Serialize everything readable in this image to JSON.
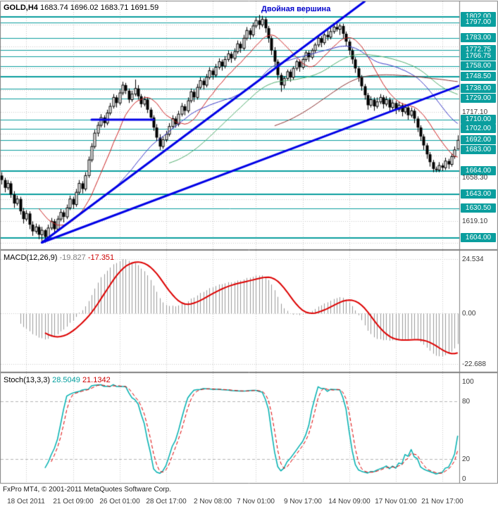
{
  "window": {
    "symbol": "GOLD,H4",
    "ohlc_text": "1683.74 1696.02 1683.71 1691.59"
  },
  "annotation": {
    "text": "Двойная вершина",
    "color": "#0000cc"
  },
  "indicators": {
    "macd": {
      "label": "MACD(12,26,9)",
      "value_main": "-19.827",
      "value_signal": "-17.351",
      "axis": [
        "24.534",
        "0.00",
        "-22.688"
      ]
    },
    "stoch": {
      "label": "Stoch(13,3,3)",
      "value_main": "28.5049",
      "value_signal": "21.1342",
      "axis": [
        "100",
        "80",
        "20",
        "0"
      ]
    }
  },
  "footer": {
    "copyright": "FxPro MT4, © 2001-2011 MetaQuotes Software Corp."
  },
  "time_axis": {
    "labels": [
      "18 Oct 2011",
      "21 Oct 09:00",
      "26 Oct 01:00",
      "28 Oct 17:00",
      "2 Nov 08:00",
      "7 Nov 01:00",
      "9 Nov 17:00",
      "14 Nov 09:00",
      "17 Nov 01:00",
      "21 Nov 17:00"
    ],
    "tick_indices": [
      8,
      23,
      38,
      53,
      68,
      82,
      97,
      112,
      127,
      142
    ]
  },
  "price_axis": {
    "grid_start": 1599.5,
    "grid_step": 19.6
  },
  "colors": {
    "teal": "#0a9e9e",
    "grid": "#c9c9c9",
    "border": "#808080",
    "candle_up": "#ffffff",
    "candle_down": "#000000",
    "wick": "#000000",
    "trendline": "#0000e6",
    "macd_hist": "#999999",
    "macd_signal": "#dd0000",
    "stoch_main": "#00b0b0",
    "stoch_signal": "#dd0000",
    "axis_text": "#3a3a3a"
  },
  "chart_data": {
    "type": "candlestick",
    "symbol": "GOLD",
    "timeframe": "H4",
    "title": "GOLD,H4 1683.74 1696.02 1683.71 1691.59",
    "annotation": "Двойная вершина",
    "current_ohlc": [
      1683.74,
      1696.02,
      1683.71,
      1691.59
    ],
    "price_range": [
      1594,
      1816
    ],
    "x_labels": [
      "18 Oct 2011",
      "21 Oct 09:00",
      "26 Oct 01:00",
      "28 Oct 17:00",
      "2 Nov 08:00",
      "7 Nov 01:00",
      "9 Nov 17:00",
      "14 Nov 09:00",
      "17 Nov 01:00",
      "21 Nov 17:00"
    ],
    "candles": [
      [
        1660,
        1663,
        1652,
        1656
      ],
      [
        1656,
        1658,
        1645,
        1649
      ],
      [
        1649,
        1656,
        1647,
        1653
      ],
      [
        1653,
        1655,
        1640,
        1643
      ],
      [
        1643,
        1646,
        1631,
        1635
      ],
      [
        1635,
        1642,
        1633,
        1639
      ],
      [
        1639,
        1641,
        1625,
        1628
      ],
      [
        1628,
        1631,
        1617,
        1621
      ],
      [
        1621,
        1629,
        1619,
        1626
      ],
      [
        1626,
        1628,
        1612,
        1616
      ],
      [
        1616,
        1619,
        1606,
        1610
      ],
      [
        1610,
        1617,
        1608,
        1614
      ],
      [
        1614,
        1616,
        1603,
        1607
      ],
      [
        1607,
        1614,
        1601,
        1611
      ],
      [
        1611,
        1612,
        1600,
        1605
      ],
      [
        1605,
        1616,
        1603,
        1613
      ],
      [
        1613,
        1622,
        1611,
        1619
      ],
      [
        1619,
        1621,
        1608,
        1612
      ],
      [
        1612,
        1624,
        1610,
        1621
      ],
      [
        1621,
        1630,
        1619,
        1627
      ],
      [
        1627,
        1629,
        1618,
        1623
      ],
      [
        1623,
        1634,
        1621,
        1631
      ],
      [
        1631,
        1642,
        1629,
        1639
      ],
      [
        1639,
        1641,
        1630,
        1634
      ],
      [
        1634,
        1648,
        1632,
        1645
      ],
      [
        1645,
        1656,
        1643,
        1653
      ],
      [
        1653,
        1655,
        1644,
        1648
      ],
      [
        1648,
        1663,
        1646,
        1660
      ],
      [
        1660,
        1677,
        1658,
        1674
      ],
      [
        1674,
        1689,
        1672,
        1686
      ],
      [
        1686,
        1701,
        1684,
        1698
      ],
      [
        1698,
        1708,
        1695,
        1705
      ],
      [
        1705,
        1715,
        1703,
        1712
      ],
      [
        1712,
        1714,
        1703,
        1707
      ],
      [
        1707,
        1719,
        1705,
        1716
      ],
      [
        1716,
        1725,
        1714,
        1722
      ],
      [
        1722,
        1733,
        1720,
        1730
      ],
      [
        1730,
        1732,
        1721,
        1725
      ],
      [
        1725,
        1737,
        1723,
        1734
      ],
      [
        1734,
        1744,
        1732,
        1741
      ],
      [
        1741,
        1743,
        1733,
        1736
      ],
      [
        1736,
        1738,
        1725,
        1728
      ],
      [
        1728,
        1736,
        1726,
        1733
      ],
      [
        1733,
        1746,
        1731,
        1738
      ],
      [
        1738,
        1741,
        1728,
        1731
      ],
      [
        1731,
        1733,
        1721,
        1724
      ],
      [
        1724,
        1731,
        1722,
        1728
      ],
      [
        1728,
        1730,
        1716,
        1719
      ],
      [
        1719,
        1721,
        1709,
        1712
      ],
      [
        1712,
        1714,
        1700,
        1703
      ],
      [
        1703,
        1706,
        1691,
        1694
      ],
      [
        1694,
        1697,
        1683,
        1686
      ],
      [
        1686,
        1695,
        1684,
        1692
      ],
      [
        1692,
        1700,
        1690,
        1697
      ],
      [
        1697,
        1707,
        1695,
        1704
      ],
      [
        1704,
        1714,
        1702,
        1711
      ],
      [
        1711,
        1713,
        1703,
        1706
      ],
      [
        1706,
        1718,
        1704,
        1715
      ],
      [
        1715,
        1725,
        1713,
        1722
      ],
      [
        1722,
        1724,
        1714,
        1718
      ],
      [
        1718,
        1730,
        1716,
        1727
      ],
      [
        1727,
        1738,
        1725,
        1735
      ],
      [
        1735,
        1737,
        1726,
        1730
      ],
      [
        1730,
        1742,
        1728,
        1739
      ],
      [
        1739,
        1748,
        1737,
        1745
      ],
      [
        1745,
        1747,
        1737,
        1741
      ],
      [
        1741,
        1751,
        1739,
        1748
      ],
      [
        1748,
        1757,
        1746,
        1754
      ],
      [
        1754,
        1756,
        1746,
        1750
      ],
      [
        1750,
        1760,
        1748,
        1757
      ],
      [
        1757,
        1765,
        1755,
        1762
      ],
      [
        1762,
        1764,
        1754,
        1758
      ],
      [
        1758,
        1767,
        1756,
        1764
      ],
      [
        1764,
        1772,
        1762,
        1769
      ],
      [
        1769,
        1771,
        1761,
        1765
      ],
      [
        1765,
        1774,
        1763,
        1771
      ],
      [
        1771,
        1781,
        1769,
        1778
      ],
      [
        1778,
        1780,
        1770,
        1774
      ],
      [
        1774,
        1786,
        1772,
        1783
      ],
      [
        1783,
        1793,
        1781,
        1790
      ],
      [
        1790,
        1792,
        1782,
        1786
      ],
      [
        1786,
        1797,
        1784,
        1794
      ],
      [
        1794,
        1802,
        1792,
        1799
      ],
      [
        1799,
        1804,
        1791,
        1795
      ],
      [
        1795,
        1803,
        1793,
        1800
      ],
      [
        1800,
        1802,
        1788,
        1792
      ],
      [
        1792,
        1794,
        1779,
        1783
      ],
      [
        1783,
        1785,
        1768,
        1772
      ],
      [
        1772,
        1775,
        1758,
        1762
      ],
      [
        1762,
        1764,
        1746,
        1750
      ],
      [
        1750,
        1752,
        1735,
        1741
      ],
      [
        1741,
        1749,
        1738,
        1747
      ],
      [
        1747,
        1755,
        1745,
        1753
      ],
      [
        1753,
        1755,
        1744,
        1748
      ],
      [
        1748,
        1758,
        1746,
        1756
      ],
      [
        1756,
        1764,
        1754,
        1762
      ],
      [
        1762,
        1764,
        1753,
        1757
      ],
      [
        1757,
        1766,
        1755,
        1764
      ],
      [
        1764,
        1772,
        1762,
        1770
      ],
      [
        1770,
        1772,
        1762,
        1766
      ],
      [
        1766,
        1774,
        1764,
        1772
      ],
      [
        1772,
        1779,
        1770,
        1777
      ],
      [
        1777,
        1785,
        1775,
        1783
      ],
      [
        1783,
        1785,
        1775,
        1779
      ],
      [
        1779,
        1788,
        1777,
        1786
      ],
      [
        1786,
        1790,
        1781,
        1784
      ],
      [
        1784,
        1792,
        1782,
        1789
      ],
      [
        1789,
        1795,
        1787,
        1793
      ],
      [
        1793,
        1797,
        1789,
        1791
      ],
      [
        1791,
        1796,
        1786,
        1794
      ],
      [
        1794,
        1796,
        1783,
        1787
      ],
      [
        1787,
        1789,
        1776,
        1780
      ],
      [
        1780,
        1782,
        1768,
        1772
      ],
      [
        1772,
        1774,
        1760,
        1764
      ],
      [
        1764,
        1766,
        1752,
        1756
      ],
      [
        1756,
        1758,
        1744,
        1748
      ],
      [
        1748,
        1750,
        1736,
        1740
      ],
      [
        1740,
        1742,
        1728,
        1732
      ],
      [
        1732,
        1734,
        1719,
        1723
      ],
      [
        1723,
        1731,
        1721,
        1728
      ],
      [
        1728,
        1730,
        1718,
        1722
      ],
      [
        1722,
        1730,
        1720,
        1726
      ],
      [
        1726,
        1733,
        1724,
        1730
      ],
      [
        1730,
        1732,
        1720,
        1724
      ],
      [
        1724,
        1731,
        1722,
        1728
      ],
      [
        1728,
        1730,
        1717,
        1721
      ],
      [
        1721,
        1728,
        1719,
        1725
      ],
      [
        1725,
        1727,
        1715,
        1719
      ],
      [
        1719,
        1726,
        1717,
        1723
      ],
      [
        1723,
        1725,
        1713,
        1717
      ],
      [
        1717,
        1724,
        1715,
        1721
      ],
      [
        1721,
        1723,
        1710,
        1714
      ],
      [
        1714,
        1721,
        1712,
        1718
      ],
      [
        1718,
        1720,
        1707,
        1711
      ],
      [
        1711,
        1713,
        1699,
        1703
      ],
      [
        1703,
        1705,
        1691,
        1695
      ],
      [
        1695,
        1697,
        1683,
        1687
      ],
      [
        1687,
        1689,
        1675,
        1679
      ],
      [
        1679,
        1681,
        1668,
        1672
      ],
      [
        1672,
        1674,
        1663,
        1666
      ],
      [
        1666,
        1668,
        1663,
        1665
      ],
      [
        1665,
        1672,
        1663,
        1669
      ],
      [
        1669,
        1671,
        1664,
        1667
      ],
      [
        1667,
        1676,
        1665,
        1673
      ],
      [
        1673,
        1675,
        1666,
        1670
      ],
      [
        1670,
        1680,
        1668,
        1677
      ],
      [
        1677,
        1686,
        1675,
        1683
      ],
      [
        1683.74,
        1696.02,
        1683.71,
        1691.59
      ]
    ],
    "horizontal_levels": [
      {
        "price": 1802.0,
        "label": "1802.00",
        "thick": true
      },
      {
        "price": 1797.0,
        "label": "1797.00",
        "thick": false
      },
      {
        "price": 1783.0,
        "label": "1783.00",
        "thick": false
      },
      {
        "price": 1772.75,
        "label": "1772.75",
        "thick": false
      },
      {
        "price": 1766.75,
        "label": "1766.75",
        "thick": false
      },
      {
        "price": 1758.0,
        "label": "1758.00",
        "thick": false
      },
      {
        "price": 1748.5,
        "label": "1748.50",
        "thick": true
      },
      {
        "price": 1738.0,
        "label": "1738.00",
        "thick": false
      },
      {
        "price": 1729.0,
        "label": "1729.00",
        "thick": false
      },
      {
        "price": 1710.0,
        "label": "1710.00",
        "thick": false
      },
      {
        "price": 1702.0,
        "label": "1702.00",
        "thick": false
      },
      {
        "price": 1692.0,
        "label": "1692.00",
        "thick": false
      },
      {
        "price": 1683.0,
        "label": "1683.00",
        "thick": false
      },
      {
        "price": 1664.0,
        "label": "1664.00",
        "thick": true
      },
      {
        "price": 1643.0,
        "label": "1643.00",
        "thick": true
      },
      {
        "price": 1630.5,
        "label": "1630.50",
        "thick": false
      },
      {
        "price": 1604.0,
        "label": "1604.00",
        "thick": true
      }
    ],
    "trendlines": [
      {
        "from_index": 13,
        "from_price": 1600,
        "to_index": 117,
        "to_price": 1816,
        "color": "#0000e6",
        "width": 3
      },
      {
        "from_index": 13,
        "from_price": 1600,
        "to_index": 148,
        "to_price": 1741,
        "color": "#0000e6",
        "width": 3
      }
    ],
    "hline_segment": {
      "price": 1710,
      "from_index": 29,
      "to_index": 49,
      "color": "#0000e6",
      "width": 3
    },
    "moving_averages": [
      {
        "period": 13,
        "color": "#cc2222",
        "width": 1
      },
      {
        "period": 34,
        "color": "#3a3ac8",
        "width": 1
      },
      {
        "period": 55,
        "color": "#4fae6e",
        "width": 1
      },
      {
        "period": 89,
        "color": "#8a3030",
        "width": 1
      }
    ],
    "macd": {
      "fast": 12,
      "slow": 26,
      "signal_period": 9,
      "last_main": -19.827,
      "last_signal": -17.351,
      "scale_max": 24.534,
      "scale_min": -22.688
    },
    "stochastic": {
      "k_period": 13,
      "slowing": 3,
      "d_period": 3,
      "last_k": 28.5049,
      "last_d": 21.1342,
      "levels": [
        80,
        20
      ],
      "range": [
        0,
        100
      ]
    }
  }
}
